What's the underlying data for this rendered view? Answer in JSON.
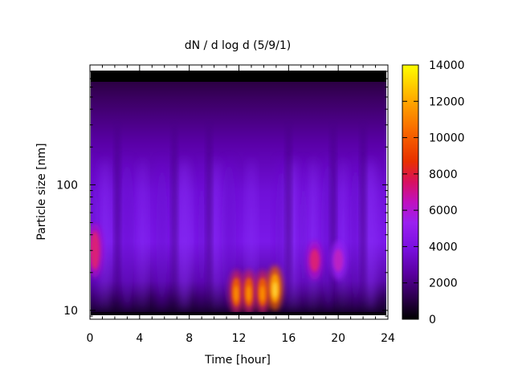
{
  "chart_data": {
    "type": "heatmap",
    "title": "dN / d log d (5/9/1)",
    "xlabel": "Time [hour]",
    "ylabel": "Particle size [nm]",
    "xlim": [
      0,
      24
    ],
    "x_ticks": [
      0,
      4,
      8,
      12,
      16,
      20,
      24
    ],
    "ylim": [
      8.5,
      900
    ],
    "y_scale": "log",
    "y_ticks": [
      10,
      100
    ],
    "colorbar": {
      "range": [
        0,
        14000
      ],
      "ticks": [
        0,
        2000,
        4000,
        6000,
        8000,
        10000,
        12000,
        14000
      ],
      "colormap": "black-purple-blue-red-orange-yellow"
    },
    "features": [
      {
        "time_h": 0.4,
        "size_nm": 30,
        "value": 6000
      },
      {
        "time_h": 11.8,
        "size_nm": 14,
        "value": 11000
      },
      {
        "time_h": 12.8,
        "size_nm": 14,
        "value": 10000
      },
      {
        "time_h": 13.9,
        "size_nm": 14,
        "value": 11000
      },
      {
        "time_h": 14.9,
        "size_nm": 15,
        "value": 13500
      },
      {
        "time_h": 18.1,
        "size_nm": 25,
        "value": 6500
      },
      {
        "time_h": 20.0,
        "size_nm": 25,
        "value": 4500
      }
    ],
    "grid": false
  },
  "colors": {
    "map": [
      "#000000",
      "#3a0060",
      "#7a00c8",
      "#9a22f0",
      "#c800a0",
      "#e84000",
      "#ff9800",
      "#ffff00"
    ]
  }
}
